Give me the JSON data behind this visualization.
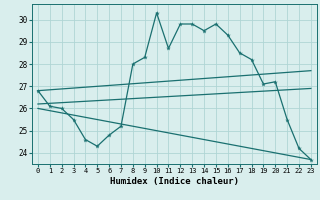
{
  "xlabel": "Humidex (Indice chaleur)",
  "bg_color": "#d9eeed",
  "line_color": "#1a7070",
  "grid_color": "#b0d5d5",
  "xlim": [
    -0.5,
    23.5
  ],
  "ylim": [
    23.5,
    30.7
  ],
  "yticks": [
    24,
    25,
    26,
    27,
    28,
    29,
    30
  ],
  "xticks": [
    0,
    1,
    2,
    3,
    4,
    5,
    6,
    7,
    8,
    9,
    10,
    11,
    12,
    13,
    14,
    15,
    16,
    17,
    18,
    19,
    20,
    21,
    22,
    23
  ],
  "main_line_x": [
    0,
    1,
    2,
    3,
    4,
    5,
    6,
    7,
    8,
    9,
    10,
    11,
    12,
    13,
    14,
    15,
    16,
    17,
    18,
    19,
    20,
    21,
    22,
    23
  ],
  "main_line_y": [
    26.8,
    26.1,
    26.0,
    25.5,
    24.6,
    24.3,
    24.8,
    25.2,
    28.0,
    28.3,
    30.3,
    28.7,
    29.8,
    29.8,
    29.5,
    29.8,
    29.3,
    28.5,
    28.2,
    27.1,
    27.2,
    25.5,
    24.2,
    23.7
  ],
  "upper_line_x": [
    0,
    23
  ],
  "upper_line_y": [
    26.8,
    27.7
  ],
  "lower_line_x": [
    0,
    23
  ],
  "lower_line_y": [
    26.0,
    23.7
  ],
  "mid_line_x": [
    0,
    23
  ],
  "mid_line_y": [
    26.2,
    26.9
  ],
  "tick_fontsize": 5,
  "xlabel_fontsize": 6.5
}
